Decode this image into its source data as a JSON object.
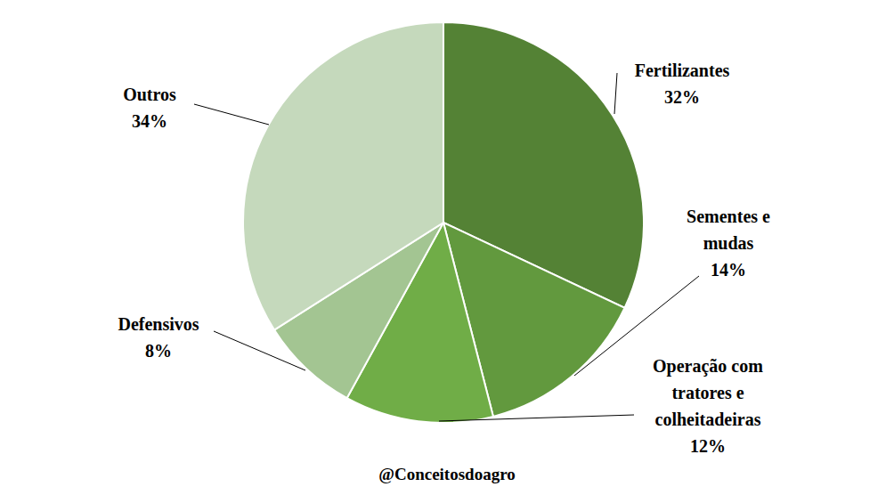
{
  "chart_data": {
    "type": "pie",
    "categories": [
      "Fertilizantes",
      "Sementes e mudas",
      "Operação com tratores e colheitadeiras",
      "Defensivos",
      "Outros"
    ],
    "values": [
      32,
      14,
      12,
      8,
      34
    ],
    "value_labels": [
      "32%",
      "14%",
      "12%",
      "8%",
      "34%"
    ],
    "colors": [
      "#548235",
      "#62993e",
      "#70ad47",
      "#a3c592",
      "#c5d9bc"
    ],
    "data_labels": true,
    "annotations": [
      "@Conceitosdoagro"
    ]
  }
}
